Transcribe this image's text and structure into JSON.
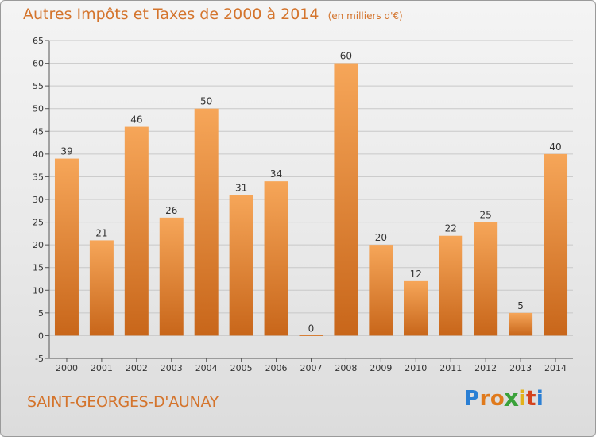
{
  "header": {
    "title": "Autres Impôts et Taxes de 2000 à 2014",
    "unit": "(en milliers d'€)"
  },
  "footer": {
    "place": "SAINT-GEORGES-D'AUNAY",
    "logo": "Proxiti",
    "logo_letters": [
      {
        "ch": "P",
        "color": "#2a7fd4"
      },
      {
        "ch": "r",
        "color": "#e07a1c"
      },
      {
        "ch": "o",
        "color": "#e07a1c"
      },
      {
        "ch": "x",
        "color": "#3aa13a"
      },
      {
        "ch": "i",
        "color": "#e2b21a"
      },
      {
        "ch": "t",
        "color": "#d4421c"
      },
      {
        "ch": "i",
        "color": "#2a7fd4"
      }
    ]
  },
  "colors": {
    "accent": "#d4742c",
    "bar_top": "#f6a659",
    "bar_bottom": "#c8661a",
    "grid": "#c8c8c8",
    "axis": "#555555",
    "tick_text": "#333333"
  },
  "chart_data": {
    "type": "bar",
    "title": "Autres Impôts et Taxes de 2000 à 2014",
    "subtitle": "(en milliers d'€)",
    "xlabel": "",
    "ylabel": "",
    "categories": [
      "2000",
      "2001",
      "2002",
      "2003",
      "2004",
      "2005",
      "2006",
      "2007",
      "2008",
      "2009",
      "2010",
      "2011",
      "2012",
      "2013",
      "2014"
    ],
    "values": [
      39,
      21,
      46,
      26,
      50,
      31,
      34,
      0,
      60,
      20,
      12,
      22,
      25,
      5,
      40
    ],
    "ylim": [
      -5,
      65
    ],
    "yticks": [
      -5,
      0,
      5,
      10,
      15,
      20,
      25,
      30,
      35,
      40,
      45,
      50,
      55,
      60,
      65
    ],
    "grid": true,
    "data_labels": true
  }
}
